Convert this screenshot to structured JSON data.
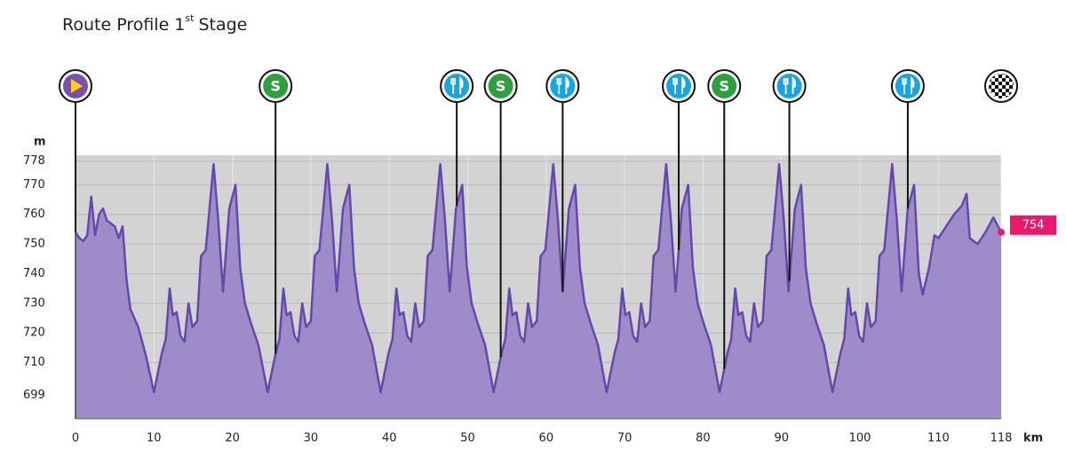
{
  "chart_data": {
    "type": "area",
    "title_parts": [
      "Route Profile 1",
      "st",
      "Stage"
    ],
    "y_unit": "m",
    "x_unit": "km",
    "xlim": [
      0,
      118
    ],
    "ylim": [
      691,
      780
    ],
    "xticks": [
      0,
      10,
      20,
      30,
      40,
      50,
      60,
      70,
      80,
      90,
      100,
      110,
      118
    ],
    "yticks": [
      699,
      710,
      720,
      730,
      740,
      750,
      760,
      770,
      778
    ],
    "grid": true,
    "color": "#6448ad",
    "fill": "#9d8cc8",
    "x": [
      0,
      0.5,
      1,
      1.5,
      2,
      2.5,
      3,
      3.5,
      4,
      5,
      5.5,
      6,
      6.5,
      7,
      8,
      9,
      10,
      11,
      11.5,
      12,
      12.4,
      12.9,
      13.4,
      13.9,
      14.4,
      14.9,
      15.5,
      16,
      16.6,
      17.6,
      18.2,
      18.8,
      19.6,
      20.4,
      21,
      21.6,
      22.4,
      23.3,
      24.5,
      25.5,
      26,
      26.5,
      26.9,
      27.4,
      27.9,
      28.4,
      28.9,
      29.4,
      30,
      30.5,
      31.1,
      32.1,
      32.7,
      33.3,
      34.1,
      34.9,
      35.5,
      36.1,
      36.9,
      37.8,
      38.9,
      39.9,
      40.4,
      40.9,
      41.3,
      41.8,
      42.3,
      42.8,
      43.3,
      43.8,
      44.4,
      44.9,
      45.5,
      46.5,
      47.1,
      47.7,
      48.5,
      49.3,
      49.9,
      50.5,
      51.3,
      52.2,
      53.3,
      54.3,
      54.8,
      55.3,
      55.7,
      56.2,
      56.7,
      57.2,
      57.7,
      58.2,
      58.8,
      59.3,
      59.9,
      60.9,
      61.5,
      62.1,
      62.9,
      63.7,
      64.3,
      64.9,
      65.7,
      66.6,
      67.7,
      68.7,
      69.2,
      69.7,
      70.1,
      70.6,
      71.1,
      71.6,
      72.1,
      72.6,
      73.2,
      73.7,
      74.3,
      75.3,
      75.9,
      76.5,
      77.3,
      78.1,
      78.7,
      79.3,
      80.1,
      81,
      82.1,
      83.1,
      83.6,
      84.1,
      84.5,
      85,
      85.5,
      86,
      86.5,
      87,
      87.6,
      88.1,
      88.7,
      89.7,
      90.3,
      90.9,
      91.7,
      92.5,
      93.1,
      93.7,
      94.5,
      95.4,
      96.5,
      97.5,
      98,
      98.5,
      98.9,
      99.4,
      99.9,
      100.4,
      100.9,
      101.4,
      102,
      102.5,
      103.1,
      104.1,
      104.7,
      105.3,
      106.1,
      106.9,
      107.5,
      108,
      108.8,
      109.5,
      110,
      111,
      112,
      113,
      113.6,
      114,
      115,
      116,
      117,
      118
    ],
    "values": [
      754,
      752,
      751,
      753,
      766,
      753,
      760,
      762,
      758,
      756,
      752,
      756,
      738,
      728,
      722,
      712,
      700,
      713,
      718,
      735,
      726,
      727,
      719,
      717,
      730,
      722,
      724,
      746,
      748,
      777,
      758,
      734,
      762,
      770,
      742,
      730,
      723,
      716,
      700,
      713,
      718,
      735,
      726,
      727,
      719,
      717,
      730,
      722,
      724,
      746,
      748,
      777,
      758,
      734,
      762,
      770,
      742,
      730,
      723,
      716,
      700,
      713,
      718,
      735,
      726,
      727,
      719,
      717,
      730,
      722,
      724,
      746,
      748,
      777,
      758,
      734,
      762,
      770,
      742,
      730,
      723,
      716,
      700,
      713,
      718,
      735,
      726,
      727,
      719,
      717,
      730,
      722,
      724,
      746,
      748,
      777,
      758,
      734,
      762,
      770,
      742,
      730,
      723,
      716,
      700,
      713,
      718,
      735,
      726,
      727,
      719,
      717,
      730,
      722,
      724,
      746,
      748,
      777,
      758,
      734,
      762,
      770,
      742,
      730,
      723,
      716,
      700,
      713,
      718,
      735,
      726,
      727,
      719,
      717,
      730,
      722,
      724,
      746,
      748,
      777,
      758,
      734,
      762,
      770,
      742,
      730,
      723,
      716,
      700,
      713,
      718,
      735,
      726,
      727,
      719,
      717,
      730,
      722,
      724,
      746,
      748,
      777,
      758,
      734,
      762,
      770,
      740,
      733,
      742,
      753,
      752,
      756,
      760,
      763,
      767,
      752,
      750,
      754,
      759,
      754
    ],
    "sprint_symbol": "S",
    "markers": [
      {
        "x": 0,
        "kind": "start"
      },
      {
        "x": 25.5,
        "kind": "sprint"
      },
      {
        "x": 48.6,
        "kind": "feed"
      },
      {
        "x": 54.2,
        "kind": "sprint"
      },
      {
        "x": 62.1,
        "kind": "feed"
      },
      {
        "x": 76.9,
        "kind": "feed"
      },
      {
        "x": 82.7,
        "kind": "sprint"
      },
      {
        "x": 91.0,
        "kind": "feed"
      },
      {
        "x": 106.1,
        "kind": "feed"
      },
      {
        "x": 118,
        "kind": "finish"
      }
    ]
  }
}
